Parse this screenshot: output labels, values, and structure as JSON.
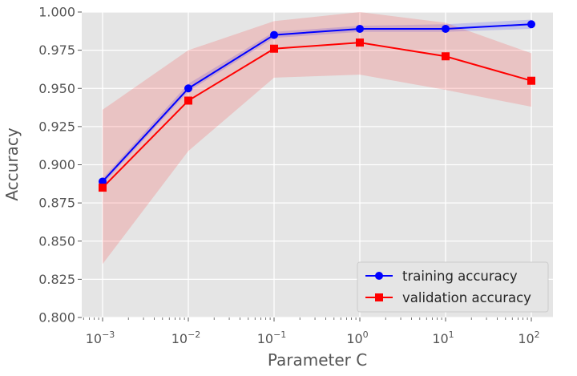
{
  "chart_data": {
    "type": "line",
    "title": "",
    "xlabel": "Parameter C",
    "ylabel": "Accuracy",
    "xscale": "log",
    "x": [
      0.001,
      0.01,
      0.1,
      1,
      10,
      100
    ],
    "x_tick_labels": [
      {
        "base": "10",
        "exp": "−3"
      },
      {
        "base": "10",
        "exp": "−2"
      },
      {
        "base": "10",
        "exp": "−1"
      },
      {
        "base": "10",
        "exp": "0"
      },
      {
        "base": "10",
        "exp": "1"
      },
      {
        "base": "10",
        "exp": "2"
      }
    ],
    "ylim": [
      0.8,
      1.0
    ],
    "y_ticks": [
      0.8,
      0.825,
      0.85,
      0.875,
      0.9,
      0.925,
      0.95,
      0.975,
      1.0
    ],
    "y_tick_labels": [
      "0.800",
      "0.825",
      "0.850",
      "0.875",
      "0.900",
      "0.925",
      "0.950",
      "0.975",
      "1.000"
    ],
    "grid": true,
    "legend_position": "lower-right",
    "series": [
      {
        "name": "training accuracy",
        "color": "#0000ff",
        "marker": "circle",
        "values": [
          0.889,
          0.95,
          0.985,
          0.989,
          0.989,
          0.992
        ],
        "band_lower": [
          0.887,
          0.948,
          0.983,
          0.987,
          0.987,
          0.989
        ],
        "band_upper": [
          0.891,
          0.953,
          0.987,
          0.991,
          0.992,
          0.995
        ],
        "band_color": "#0000ff",
        "band_opacity": 0.15
      },
      {
        "name": "validation accuracy",
        "color": "#ff0000",
        "marker": "square",
        "values": [
          0.885,
          0.942,
          0.976,
          0.98,
          0.971,
          0.955
        ],
        "band_lower": [
          0.835,
          0.909,
          0.957,
          0.959,
          0.949,
          0.938
        ],
        "band_upper": [
          0.936,
          0.975,
          0.994,
          1.0,
          0.993,
          0.973
        ],
        "band_color": "#ff0000",
        "band_opacity": 0.15
      }
    ]
  }
}
